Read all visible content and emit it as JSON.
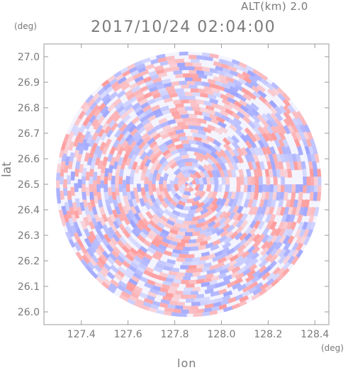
{
  "header": {
    "altitude_label": "ALT(km)  2.0",
    "timestamp": "2017/10/24 02:04:00"
  },
  "chart_data": {
    "type": "heatmap",
    "title": "2017/10/24 02:04:00",
    "subtitle": "ALT(km)  2.0",
    "xlabel": "lon",
    "ylabel": "lat",
    "x_unit": "(deg)",
    "y_unit": "(deg)",
    "xlim": [
      127.24,
      128.46
    ],
    "ylim": [
      25.95,
      27.05
    ],
    "x_ticks": [
      "127.4",
      "127.6",
      "127.8",
      "128.0",
      "128.2",
      "128.4"
    ],
    "y_ticks": [
      "26.0",
      "26.1",
      "26.2",
      "26.3",
      "26.4",
      "26.5",
      "26.6",
      "26.7",
      "26.8",
      "26.9",
      "27.0"
    ],
    "center": {
      "lon": 127.86,
      "lat": 26.5
    },
    "radius_deg_lat": 0.52,
    "colors": {
      "positive": "#ff9c9c",
      "negative": "#9ea5ff",
      "neutral": "#f4f4ff",
      "axis": "#999999",
      "text": "#7a7a7a"
    },
    "grid": false
  }
}
